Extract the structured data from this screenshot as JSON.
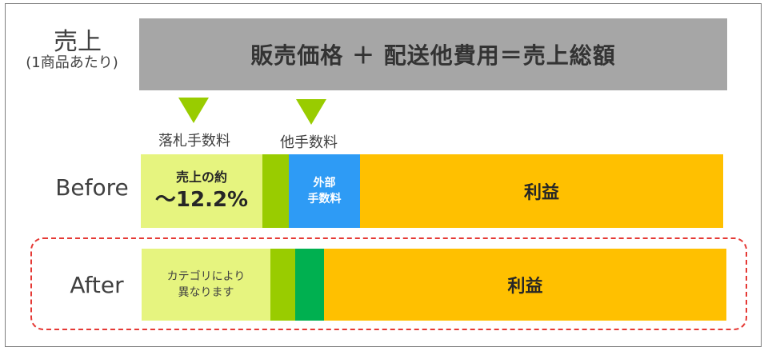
{
  "sales": {
    "label": "売上",
    "sublabel": "(1商品あたり)"
  },
  "formula": {
    "text": "販売価格 ＋ 配送他費用＝売上総額"
  },
  "fees": {
    "winning_bid_fee": "落札手数料",
    "other_fee": "他手数料"
  },
  "before": {
    "label": "Before",
    "segments": {
      "bid_fee_line1": "売上の約",
      "bid_fee_line2": "～12.2%",
      "external_fee_line1": "外部",
      "external_fee_line2": "手数料",
      "profit": "利益"
    }
  },
  "after": {
    "label": "After",
    "segments": {
      "bid_fee_line1": "カテゴリにより",
      "bid_fee_line2": "異なります",
      "profit": "利益"
    }
  },
  "colors": {
    "formula_bg": "#a6a6a6",
    "bid_fee": "#e6f47f",
    "other_fee": "#99cc00",
    "external_fee": "#2e9bf5",
    "after_fee": "#00b050",
    "profit": "#ffc000",
    "triangle": "#99cc00",
    "dashed_border": "#e53935"
  }
}
